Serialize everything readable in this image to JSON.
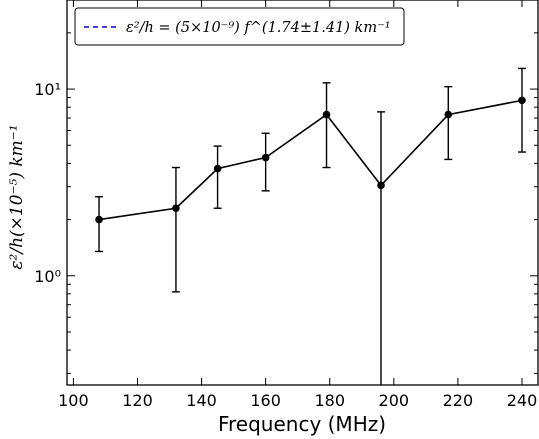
{
  "chart_data": {
    "type": "line",
    "xlabel": "Frequency (MHz)",
    "ylabel": "ε²/h(×10⁻⁵) km⁻¹",
    "x_scale": "linear",
    "y_scale": "log",
    "xlim": [
      98,
      245
    ],
    "ylim": [
      0.26,
      30
    ],
    "x_ticks": [
      100,
      120,
      140,
      160,
      180,
      200,
      220,
      240
    ],
    "y_ticks": [
      1,
      10
    ],
    "y_tick_labels": [
      "10⁰",
      "10¹"
    ],
    "grid": false,
    "legend_position": "top-left",
    "series": [
      {
        "kind": "measured",
        "color": "#000000",
        "marker": "circle",
        "linestyle": "solid",
        "x": [
          108,
          132,
          145,
          160,
          179,
          196,
          217,
          240
        ],
        "y": [
          2.0,
          2.3,
          3.75,
          4.3,
          7.3,
          3.05,
          7.3,
          8.7
        ],
        "yerr_low": [
          0.65,
          1.48,
          1.45,
          1.45,
          3.5,
          2.8,
          3.1,
          4.1
        ],
        "yerr_high": [
          0.65,
          1.5,
          1.2,
          1.5,
          3.5,
          4.5,
          3.0,
          4.2
        ]
      },
      {
        "kind": "fit",
        "name": "ε²/h = (5×10⁻⁹) f^(1.74±1.41) km⁻¹",
        "color": "#0000cc",
        "linestyle": "dashed",
        "coefficient": 5e-09,
        "exponent": 1.74,
        "scale_factor": 100000,
        "x_range": [
          100,
          241
        ]
      }
    ]
  }
}
